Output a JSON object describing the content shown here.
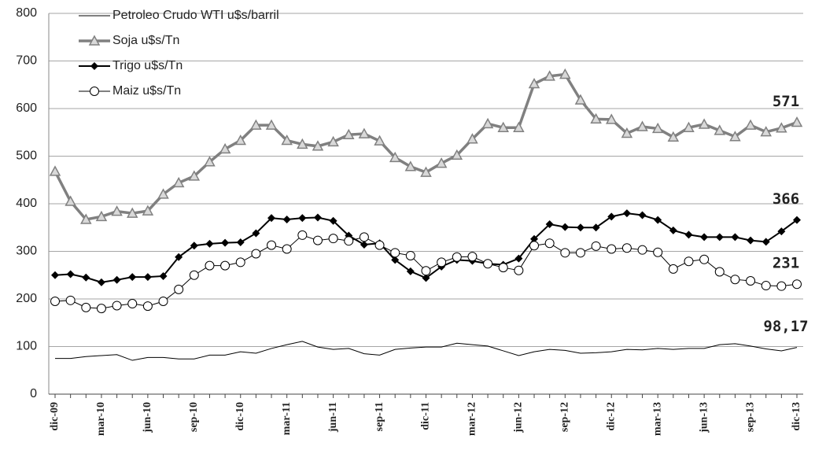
{
  "chart_data": {
    "type": "line",
    "categories": [
      "dic-09",
      null,
      null,
      "mar-10",
      null,
      null,
      "jun-10",
      null,
      null,
      "sep-10",
      null,
      null,
      "dic-10",
      null,
      null,
      "mar-11",
      null,
      null,
      "jun-11",
      null,
      null,
      "sep-11",
      null,
      null,
      "dic-11",
      null,
      null,
      "mar-12",
      null,
      null,
      "jun-12",
      null,
      null,
      "sep-12",
      null,
      null,
      "dic-12",
      null,
      null,
      "mar-13",
      null,
      null,
      "jun-13",
      null,
      null,
      "sep-13",
      null,
      null,
      "dic-13"
    ],
    "series": [
      {
        "name": "Petroleo Crudo WTI u$s/barril",
        "color": "#000000",
        "marker": null,
        "values": [
          75,
          75,
          79,
          81,
          83,
          71,
          77,
          77,
          74,
          74,
          82,
          82,
          89,
          86,
          96,
          104,
          111,
          99,
          94,
          96,
          85,
          82,
          94,
          97,
          99,
          99,
          107,
          104,
          101,
          91,
          81,
          89,
          94,
          92,
          86,
          87,
          89,
          94,
          93,
          96,
          94,
          96,
          96,
          104,
          106,
          101,
          95,
          91,
          98.17
        ],
        "value_labels": [
          null,
          null,
          null,
          null,
          null,
          null,
          null,
          null,
          null,
          null,
          null,
          null,
          null,
          null,
          null,
          null,
          null,
          null,
          null,
          null,
          null,
          null,
          null,
          null,
          null,
          null,
          null,
          null,
          null,
          null,
          null,
          null,
          null,
          null,
          null,
          null,
          null,
          null,
          null,
          null,
          null,
          null,
          null,
          null,
          null,
          null,
          null,
          null,
          "98,17"
        ]
      },
      {
        "name": "Soja u$s/Tn",
        "color": "#808080",
        "marker": "triangle",
        "values": [
          468,
          405,
          367,
          373,
          384,
          380,
          385,
          420,
          444,
          458,
          488,
          515,
          533,
          565,
          565,
          533,
          525,
          521,
          530,
          545,
          547,
          532,
          497,
          478,
          466,
          485,
          502,
          536,
          568,
          560,
          560,
          652,
          668,
          672,
          618,
          578,
          577,
          548,
          562,
          558,
          540,
          560,
          567,
          554,
          541,
          565,
          551,
          559,
          571
        ],
        "value_labels": [
          null,
          null,
          null,
          null,
          null,
          null,
          null,
          null,
          null,
          null,
          null,
          null,
          null,
          null,
          null,
          null,
          null,
          null,
          null,
          null,
          null,
          null,
          null,
          null,
          null,
          null,
          null,
          null,
          null,
          null,
          null,
          null,
          null,
          null,
          null,
          null,
          null,
          null,
          null,
          null,
          null,
          null,
          null,
          null,
          null,
          null,
          null,
          null,
          "571"
        ]
      },
      {
        "name": "Trigo u$s/Tn",
        "color": "#000000",
        "marker": "diamond",
        "values": [
          250,
          252,
          245,
          235,
          240,
          246,
          246,
          248,
          288,
          312,
          316,
          318,
          319,
          338,
          370,
          367,
          370,
          371,
          364,
          333,
          314,
          317,
          282,
          258,
          244,
          268,
          282,
          280,
          274,
          272,
          285,
          326,
          357,
          351,
          350,
          350,
          373,
          380,
          376,
          366,
          344,
          335,
          330,
          330,
          330,
          323,
          320,
          342,
          366
        ],
        "value_labels": [
          null,
          null,
          null,
          null,
          null,
          null,
          null,
          null,
          null,
          null,
          null,
          null,
          null,
          null,
          null,
          null,
          null,
          null,
          null,
          null,
          null,
          null,
          null,
          null,
          null,
          null,
          null,
          null,
          null,
          null,
          null,
          null,
          null,
          null,
          null,
          null,
          null,
          null,
          null,
          null,
          null,
          null,
          null,
          null,
          null,
          null,
          null,
          null,
          "366"
        ]
      },
      {
        "name": "Maiz u$s/Tn",
        "color": "#000000",
        "marker": "circle",
        "values": [
          195,
          197,
          182,
          180,
          186,
          190,
          185,
          195,
          220,
          250,
          270,
          270,
          277,
          295,
          313,
          305,
          334,
          323,
          327,
          322,
          330,
          313,
          297,
          291,
          259,
          277,
          288,
          289,
          274,
          266,
          260,
          312,
          317,
          297,
          297,
          311,
          305,
          307,
          303,
          298,
          263,
          279,
          283,
          257,
          241,
          238,
          228,
          227,
          231
        ],
        "value_labels": [
          null,
          null,
          null,
          null,
          null,
          null,
          null,
          null,
          null,
          null,
          null,
          null,
          null,
          null,
          null,
          null,
          null,
          null,
          null,
          null,
          null,
          null,
          null,
          null,
          null,
          null,
          null,
          null,
          null,
          null,
          null,
          null,
          null,
          null,
          null,
          null,
          null,
          null,
          null,
          null,
          null,
          null,
          null,
          null,
          null,
          null,
          null,
          null,
          "231"
        ]
      }
    ],
    "ylim": [
      0,
      800
    ],
    "yticks": [
      0,
      100,
      200,
      300,
      400,
      500,
      600,
      700,
      800
    ],
    "grid": true,
    "legend": "top-left"
  }
}
